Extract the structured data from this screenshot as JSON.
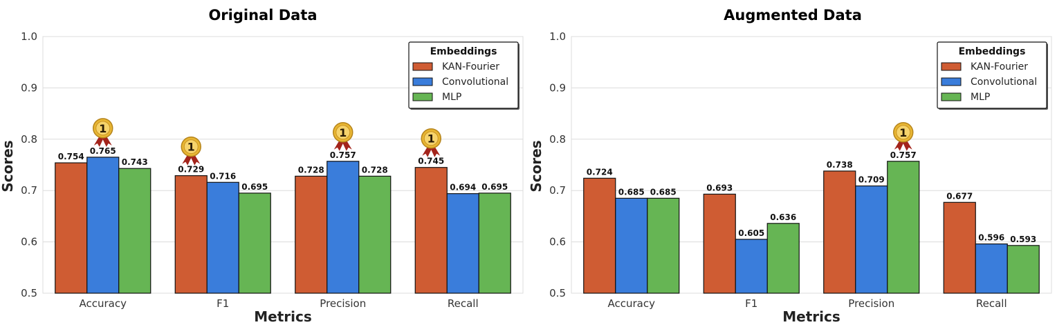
{
  "colors": {
    "KAN-Fourier": "#cf5c33",
    "Convolutional": "#3a7ddb",
    "MLP": "#66b554",
    "medal_gold": "#e8b633",
    "ribbon": "#a3241b"
  },
  "chart_data": [
    {
      "type": "bar",
      "title": "Original Data",
      "xlabel": "Metrics",
      "ylabel": "Scores",
      "ylim": [
        0.5,
        1.0
      ],
      "yticks": [
        "0.5",
        "0.6",
        "0.7",
        "0.8",
        "0.9",
        "1.0"
      ],
      "grid": true,
      "legend_title": "Embeddings",
      "legend_position": "top-right",
      "categories": [
        "Accuracy",
        "F1",
        "Precision",
        "Recall"
      ],
      "series": [
        {
          "name": "KAN-Fourier",
          "values": [
            0.754,
            0.729,
            0.728,
            0.745
          ],
          "labels": [
            "0.754",
            "0.729",
            "0.728",
            "0.745"
          ]
        },
        {
          "name": "Convolutional",
          "values": [
            0.765,
            0.716,
            0.757,
            0.694
          ],
          "labels": [
            "0.765",
            "0.716",
            "0.757",
            "0.694"
          ]
        },
        {
          "name": "MLP",
          "values": [
            0.743,
            0.695,
            0.728,
            0.695
          ],
          "labels": [
            "0.743",
            "0.695",
            "0.728",
            "0.695"
          ]
        }
      ],
      "best_markers": [
        {
          "category": "Accuracy",
          "series": "Convolutional",
          "medal_text": "1"
        },
        {
          "category": "F1",
          "series": "KAN-Fourier",
          "medal_text": "1"
        },
        {
          "category": "Precision",
          "series": "Convolutional",
          "medal_text": "1"
        },
        {
          "category": "Recall",
          "series": "KAN-Fourier",
          "medal_text": "1"
        }
      ]
    },
    {
      "type": "bar",
      "title": "Augmented Data",
      "xlabel": "Metrics",
      "ylabel": "Scores",
      "ylim": [
        0.5,
        1.0
      ],
      "yticks": [
        "0.5",
        "0.6",
        "0.7",
        "0.8",
        "0.9",
        "1.0"
      ],
      "grid": true,
      "legend_title": "Embeddings",
      "legend_position": "top-right",
      "categories": [
        "Accuracy",
        "F1",
        "Precision",
        "Recall"
      ],
      "series": [
        {
          "name": "KAN-Fourier",
          "values": [
            0.724,
            0.693,
            0.738,
            0.677
          ],
          "labels": [
            "0.724",
            "0.693",
            "0.738",
            "0.677"
          ]
        },
        {
          "name": "Convolutional",
          "values": [
            0.685,
            0.605,
            0.709,
            0.596
          ],
          "labels": [
            "0.685",
            "0.605",
            "0.709",
            "0.596"
          ]
        },
        {
          "name": "MLP",
          "values": [
            0.685,
            0.636,
            0.757,
            0.593
          ],
          "labels": [
            "0.685",
            "0.636",
            "0.757",
            "0.593"
          ]
        }
      ],
      "best_markers": [
        {
          "category": "Precision",
          "series": "MLP",
          "medal_text": "1"
        }
      ]
    }
  ]
}
